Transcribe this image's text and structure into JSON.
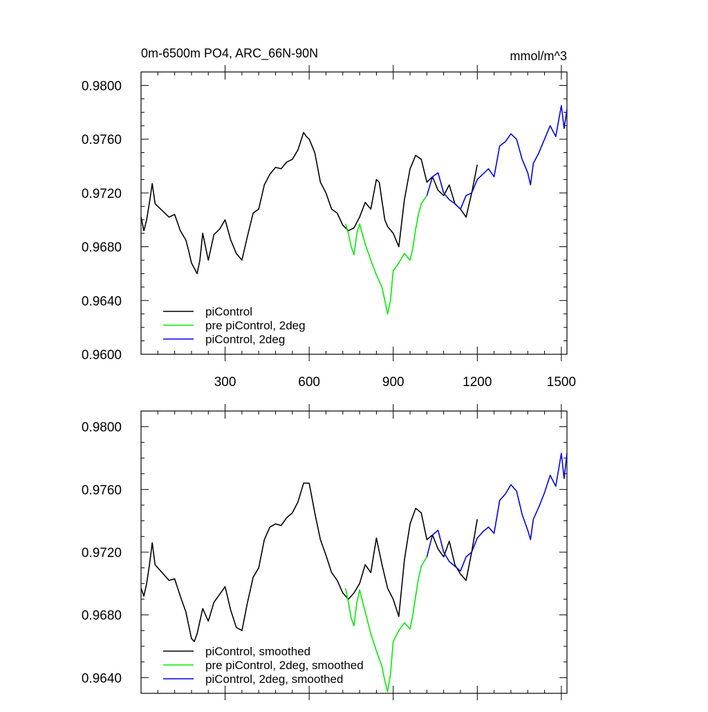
{
  "chart_data": [
    {
      "type": "line",
      "title": "0m-6500m PO4, ARC_66N-90N",
      "units": "mmol/m^3",
      "xlabel": "",
      "ylabel": "",
      "xlim": [
        0,
        1520
      ],
      "ylim": [
        0.96,
        0.981
      ],
      "x_ticks": [
        300,
        600,
        900,
        1200,
        1500
      ],
      "x_tick_labels": [
        "300",
        "600",
        "900",
        "1200",
        "1500"
      ],
      "y_ticks": [
        0.96,
        0.964,
        0.968,
        0.972,
        0.976,
        0.98
      ],
      "y_tick_labels": [
        "0.9600",
        "0.9640",
        "0.9680",
        "0.9720",
        "0.9760",
        "0.9800"
      ],
      "grid": false,
      "legend_position": "bottom-left",
      "series": [
        {
          "name": "piControl",
          "color": "#000000",
          "x": [
            0,
            10,
            20,
            30,
            40,
            50,
            60,
            80,
            100,
            120,
            140,
            160,
            170,
            180,
            190,
            200,
            210,
            220,
            230,
            240,
            260,
            280,
            300,
            320,
            340,
            360,
            380,
            400,
            420,
            440,
            460,
            480,
            500,
            520,
            540,
            560,
            580,
            590,
            600,
            620,
            640,
            660,
            680,
            700,
            720,
            740,
            760,
            780,
            800,
            820,
            840,
            850,
            860,
            870,
            880,
            900,
            920,
            940,
            960,
            980,
            1000,
            1020,
            1040,
            1060,
            1080,
            1100,
            1120,
            1140,
            1160,
            1180,
            1200
          ],
          "y": [
            0.9702,
            0.9692,
            0.97,
            0.9713,
            0.9727,
            0.9712,
            0.971,
            0.9706,
            0.9702,
            0.9704,
            0.9692,
            0.9685,
            0.9677,
            0.9668,
            0.9664,
            0.966,
            0.967,
            0.969,
            0.968,
            0.967,
            0.9689,
            0.9693,
            0.97,
            0.9685,
            0.9675,
            0.967,
            0.9688,
            0.9705,
            0.9708,
            0.9726,
            0.9734,
            0.9739,
            0.9738,
            0.9743,
            0.9745,
            0.9752,
            0.9765,
            0.9762,
            0.976,
            0.975,
            0.9728,
            0.972,
            0.9708,
            0.9705,
            0.9696,
            0.9692,
            0.9694,
            0.9702,
            0.9713,
            0.9708,
            0.973,
            0.9728,
            0.9714,
            0.97,
            0.9695,
            0.969,
            0.968,
            0.9715,
            0.9738,
            0.9748,
            0.9745,
            0.9728,
            0.9732,
            0.9722,
            0.9718,
            0.9726,
            0.9712,
            0.9708,
            0.9702,
            0.972,
            0.9741
          ]
        },
        {
          "name": "pre piControl, 2deg",
          "color": "#00ee00",
          "x": [
            730,
            740,
            750,
            760,
            770,
            780,
            800,
            820,
            840,
            860,
            870,
            880,
            890,
            900,
            920,
            940,
            960,
            970,
            980,
            990,
            1000,
            1010,
            1020
          ],
          "y": [
            0.9697,
            0.969,
            0.968,
            0.9674,
            0.969,
            0.9697,
            0.9682,
            0.967,
            0.9659,
            0.965,
            0.964,
            0.963,
            0.964,
            0.9662,
            0.9668,
            0.9675,
            0.967,
            0.9679,
            0.9693,
            0.9704,
            0.9712,
            0.9715,
            0.9718
          ]
        },
        {
          "name": "piControl, 2deg",
          "color": "#0000ee",
          "x": [
            1020,
            1040,
            1060,
            1080,
            1100,
            1120,
            1140,
            1160,
            1180,
            1200,
            1220,
            1240,
            1260,
            1280,
            1300,
            1320,
            1340,
            1360,
            1380,
            1390,
            1400,
            1420,
            1440,
            1460,
            1480,
            1500,
            1510,
            1520
          ],
          "y": [
            0.9718,
            0.9732,
            0.9735,
            0.972,
            0.9715,
            0.9712,
            0.9708,
            0.9718,
            0.972,
            0.973,
            0.9734,
            0.9738,
            0.9732,
            0.9755,
            0.9758,
            0.9764,
            0.976,
            0.9745,
            0.9735,
            0.9726,
            0.9742,
            0.975,
            0.976,
            0.977,
            0.9762,
            0.9785,
            0.9768,
            0.9782
          ]
        }
      ]
    },
    {
      "type": "line",
      "title": "",
      "xlabel": "",
      "ylabel": "",
      "xlim": [
        0,
        1520
      ],
      "ylim": [
        0.963,
        0.981
      ],
      "x_ticks": [
        300,
        600,
        900,
        1200,
        1500
      ],
      "x_tick_labels": [],
      "y_ticks": [
        0.964,
        0.968,
        0.972,
        0.976,
        0.98
      ],
      "y_tick_labels": [
        "0.9640",
        "0.9680",
        "0.9720",
        "0.9760",
        "0.9800"
      ],
      "grid": false,
      "legend_position": "bottom-left",
      "series": [
        {
          "name": "piControl, smoothed",
          "color": "#000000",
          "x": [
            0,
            10,
            20,
            30,
            40,
            50,
            60,
            80,
            100,
            120,
            140,
            160,
            180,
            190,
            200,
            220,
            240,
            260,
            280,
            300,
            320,
            340,
            360,
            380,
            400,
            420,
            440,
            460,
            480,
            500,
            520,
            540,
            560,
            580,
            600,
            620,
            640,
            660,
            680,
            700,
            720,
            740,
            760,
            780,
            800,
            820,
            840,
            860,
            880,
            900,
            920,
            940,
            960,
            980,
            1000,
            1020,
            1040,
            1060,
            1080,
            1100,
            1120,
            1140,
            1160,
            1180,
            1200
          ],
          "y": [
            0.9697,
            0.9692,
            0.97,
            0.9712,
            0.9726,
            0.9712,
            0.971,
            0.9706,
            0.9702,
            0.9703,
            0.9692,
            0.9682,
            0.9665,
            0.9663,
            0.9668,
            0.9684,
            0.9676,
            0.9688,
            0.9693,
            0.9698,
            0.9683,
            0.9672,
            0.967,
            0.9688,
            0.9704,
            0.971,
            0.9728,
            0.9736,
            0.9738,
            0.9737,
            0.9742,
            0.9745,
            0.9752,
            0.9764,
            0.9764,
            0.9745,
            0.9728,
            0.9718,
            0.9707,
            0.9702,
            0.9694,
            0.969,
            0.9694,
            0.97,
            0.9712,
            0.9707,
            0.9729,
            0.9712,
            0.9697,
            0.969,
            0.9679,
            0.9715,
            0.9738,
            0.9748,
            0.9745,
            0.9728,
            0.9731,
            0.9722,
            0.9717,
            0.9727,
            0.9712,
            0.9706,
            0.9702,
            0.972,
            0.9741
          ]
        },
        {
          "name": "pre piControl, 2deg, smoothed",
          "color": "#00ee00",
          "x": [
            730,
            740,
            750,
            760,
            770,
            780,
            800,
            820,
            840,
            860,
            870,
            880,
            890,
            900,
            920,
            940,
            960,
            970,
            980,
            990,
            1000,
            1010,
            1020
          ],
          "y": [
            0.9697,
            0.9688,
            0.9678,
            0.9673,
            0.9688,
            0.9696,
            0.9682,
            0.9668,
            0.9657,
            0.9647,
            0.9638,
            0.9631,
            0.9642,
            0.9663,
            0.967,
            0.9675,
            0.9671,
            0.968,
            0.9692,
            0.9703,
            0.9711,
            0.9714,
            0.9717
          ]
        },
        {
          "name": "piControl, 2deg, smoothed",
          "color": "#0000ee",
          "x": [
            1020,
            1040,
            1060,
            1080,
            1100,
            1120,
            1140,
            1160,
            1180,
            1200,
            1220,
            1240,
            1260,
            1280,
            1300,
            1320,
            1340,
            1360,
            1380,
            1390,
            1400,
            1420,
            1440,
            1460,
            1480,
            1500,
            1510,
            1520
          ],
          "y": [
            0.9717,
            0.9731,
            0.9734,
            0.972,
            0.9714,
            0.9711,
            0.9708,
            0.9717,
            0.972,
            0.9729,
            0.9733,
            0.9736,
            0.9732,
            0.9753,
            0.9757,
            0.9763,
            0.9759,
            0.9744,
            0.9734,
            0.9728,
            0.9741,
            0.9749,
            0.9758,
            0.9769,
            0.9762,
            0.9783,
            0.9767,
            0.9783
          ]
        }
      ]
    }
  ]
}
